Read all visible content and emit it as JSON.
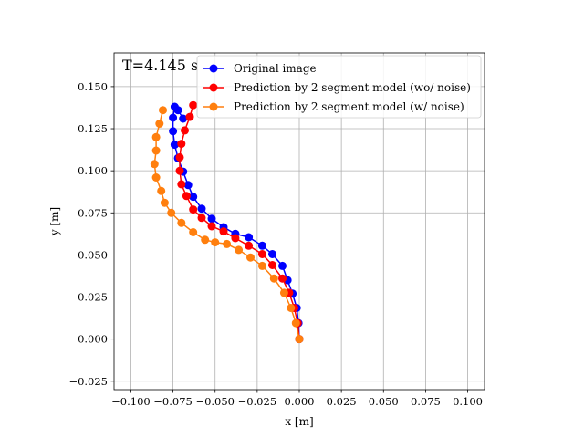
{
  "chart_data": {
    "type": "line",
    "annotation": "T=4.145 s",
    "xlabel": "x [m]",
    "ylabel": "y [m]",
    "xlim": [
      -0.11,
      0.11
    ],
    "ylim": [
      -0.03,
      0.17
    ],
    "xticks": [
      -0.1,
      -0.075,
      -0.05,
      -0.025,
      0.0,
      0.025,
      0.05,
      0.075,
      0.1
    ],
    "xtick_labels": [
      "−0.100",
      "−0.075",
      "−0.050",
      "−0.025",
      "0.000",
      "0.025",
      "0.050",
      "0.075",
      "0.100"
    ],
    "yticks": [
      -0.025,
      0.0,
      0.025,
      0.05,
      0.075,
      0.1,
      0.125,
      0.15
    ],
    "ytick_labels": [
      "−0.025",
      "0.000",
      "0.025",
      "0.050",
      "0.075",
      "0.100",
      "0.125",
      "0.150"
    ],
    "grid": true,
    "legend_position": "top-right",
    "series": [
      {
        "name": "Original image",
        "color": "#0000ff",
        "x": [
          0.0,
          -0.0005,
          -0.0015,
          -0.004,
          -0.007,
          -0.01,
          -0.016,
          -0.022,
          -0.03,
          -0.038,
          -0.045,
          -0.052,
          -0.058,
          -0.063,
          -0.066,
          -0.069,
          -0.072,
          -0.074,
          -0.075,
          -0.075,
          -0.074,
          -0.072,
          -0.069
        ],
        "y": [
          0.0,
          0.0095,
          0.0185,
          0.027,
          0.035,
          0.0435,
          0.0505,
          0.0555,
          0.0605,
          0.0625,
          0.0665,
          0.0715,
          0.0775,
          0.0845,
          0.0915,
          0.0995,
          0.1075,
          0.1155,
          0.1235,
          0.1315,
          0.138,
          0.136,
          0.131
        ]
      },
      {
        "name": "Prediction by 2 segment model (wo/ noise)",
        "color": "#ff0000",
        "x": [
          0.0,
          -0.001,
          -0.003,
          -0.006,
          -0.01,
          -0.016,
          -0.022,
          -0.03,
          -0.038,
          -0.045,
          -0.052,
          -0.058,
          -0.063,
          -0.067,
          -0.07,
          -0.071,
          -0.071,
          -0.07,
          -0.068,
          -0.065,
          -0.063
        ],
        "y": [
          0.0,
          0.0095,
          0.0185,
          0.0275,
          0.036,
          0.044,
          0.0505,
          0.0555,
          0.06,
          0.064,
          0.067,
          0.072,
          0.077,
          0.085,
          0.092,
          0.1,
          0.108,
          0.116,
          0.124,
          0.132,
          0.139
        ]
      },
      {
        "name": "Prediction by 2 segment model (w/ noise)",
        "color": "#ff7f0e",
        "x": [
          0.0,
          -0.002,
          -0.005,
          -0.009,
          -0.015,
          -0.022,
          -0.029,
          -0.036,
          -0.043,
          -0.05,
          -0.056,
          -0.063,
          -0.07,
          -0.076,
          -0.08,
          -0.082,
          -0.085,
          -0.086,
          -0.085,
          -0.085,
          -0.083,
          -0.081
        ],
        "y": [
          0.0,
          0.0095,
          0.0185,
          0.0275,
          0.036,
          0.0435,
          0.0485,
          0.053,
          0.0565,
          0.0575,
          0.059,
          0.0635,
          0.069,
          0.075,
          0.081,
          0.088,
          0.096,
          0.104,
          0.112,
          0.12,
          0.128,
          0.136
        ]
      }
    ]
  }
}
